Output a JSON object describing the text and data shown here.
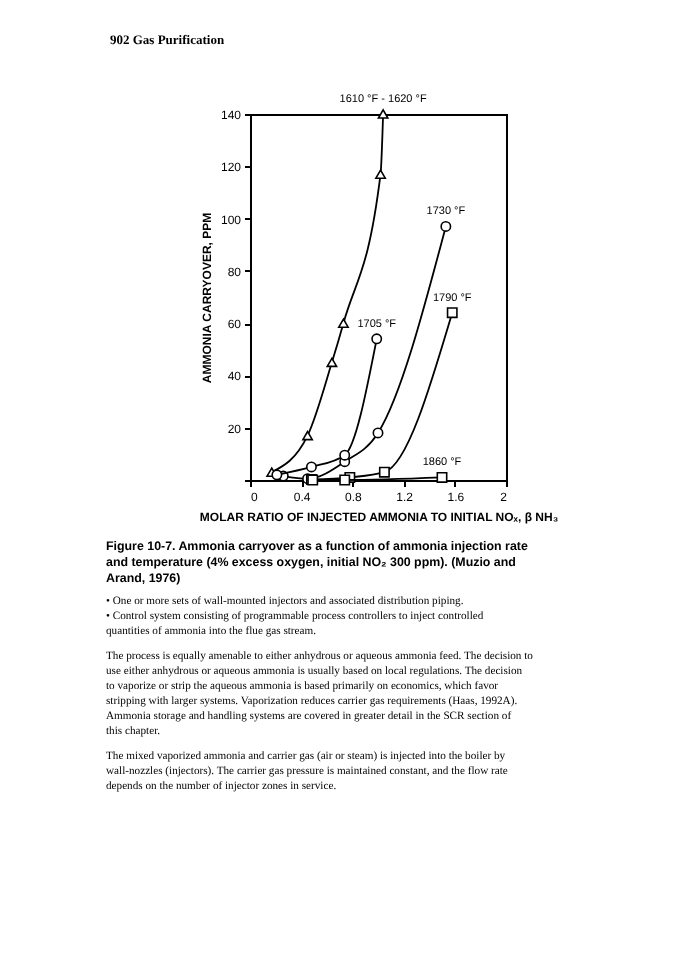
{
  "chart_data": {
    "type": "line",
    "xlabel": "MOLAR RATIO OF INJECTED AMMONIA TO INITIAL NOₓ, β NH₃",
    "ylabel": "AMMONIA CARRYOVER, PPM",
    "xlim": [
      0,
      2
    ],
    "xticks": [
      0,
      0.4,
      0.8,
      1.2,
      1.6,
      2
    ],
    "ylim": [
      0,
      140
    ],
    "yticks": [
      {
        "value": 0,
        "label": null
      },
      20,
      40,
      60,
      80,
      100,
      120,
      140
    ],
    "grid": false,
    "line_style": "solid",
    "series": [
      {
        "name": "1610 °F - 1620 °F",
        "color": "#000000",
        "marker": "triangle",
        "x": [
          0.17,
          0.45,
          0.64,
          0.73,
          1.02,
          1.04
        ],
        "values": [
          3,
          17,
          45,
          60,
          117,
          140
        ]
      },
      {
        "name": "1730 °F",
        "color": "#000000",
        "marker": "circle",
        "x": [
          0.26,
          0.45,
          0.74,
          1.0,
          1.53
        ],
        "values": [
          1.5,
          0.5,
          7,
          18,
          97
        ]
      },
      {
        "name": "1790 °F",
        "color": "#000000",
        "marker": "square",
        "x": [
          0.48,
          0.78,
          1.05,
          1.58
        ],
        "values": [
          0.2,
          1,
          3,
          64
        ]
      },
      {
        "name": "1705 °F",
        "color": "#000000",
        "marker": "circle",
        "x": [
          0.21,
          0.48,
          0.74,
          0.99
        ],
        "values": [
          2,
          5,
          9.5,
          54
        ]
      },
      {
        "name": "1860 °F",
        "color": "#000000",
        "marker": "square",
        "x": [
          0.49,
          0.74,
          1.5
        ],
        "values": [
          0,
          0,
          1
        ]
      }
    ],
    "annotations": [
      "902 Gas Purification",
      "Figure 10-7. Ammonia carryover as a function of ammonia injection rate and temperature (4% excess oxygen, initial NO₂ 300 ppm). (Muzio and Arand, 1976)",
      "• One or more sets of wall-mounted injectors and associated distribution piping.",
      "• Control system consisting of programmable process controllers to inject controlled quantities of ammonia into the flue gas stream.",
      "The process is equally amenable to either anhydrous or aqueous ammonia feed. The decision to use either anhydrous or aqueous ammonia is usually based on local regulations. The decision to vaporize or strip the aqueous ammonia is based primarily on economics, which favor stripping with larger systems. Vaporization reduces carrier gas requirements (Haas, 1992A). Ammonia storage and handling systems are covered in greater detail in the SCR section of this chapter.",
      "The mixed vaporized ammonia and carrier gas (air or steam) is injected into the boiler by wall-nozzles (injectors). The carrier gas pressure is maintained constant, and the flow rate depends on the number of injector zones in service."
    ]
  }
}
